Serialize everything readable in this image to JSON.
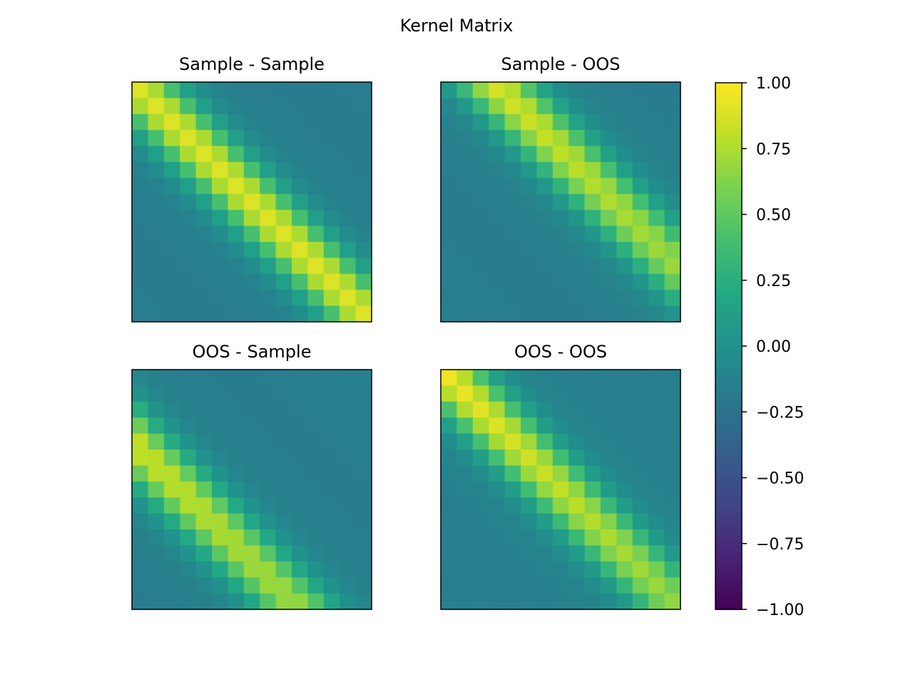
{
  "figure": {
    "title": "Kernel Matrix"
  },
  "chart_data": [
    {
      "type": "heatmap",
      "title": "Sample - Sample",
      "rows": 15,
      "cols": 15,
      "model": {
        "lag": 0,
        "peak": 0.88,
        "peak_start": 0.95,
        "peak_end": 0.95,
        "dip": -0.3
      }
    },
    {
      "type": "heatmap",
      "title": "Sample - OOS",
      "rows": 15,
      "cols": 15,
      "model": {
        "lag": 3.2,
        "peak": 0.75,
        "peak_start": 0.95,
        "peak_end": 0.72,
        "dip": -0.3
      }
    },
    {
      "type": "heatmap",
      "title": "OOS - Sample",
      "rows": 15,
      "cols": 15,
      "model": {
        "lag": -4.5,
        "peak": 0.82,
        "peak_start": 0.92,
        "peak_end": 0.72,
        "dip": -0.3
      }
    },
    {
      "type": "heatmap",
      "title": "OOS - OOS",
      "rows": 15,
      "cols": 15,
      "model": {
        "lag": 0,
        "peak": 0.88,
        "peak_start": 1.0,
        "peak_end": 0.72,
        "dip": -0.25
      }
    }
  ],
  "colorbar": {
    "vmin": -1.0,
    "vmax": 1.0,
    "colormap": "viridis",
    "ticks": [
      1.0,
      0.75,
      0.5,
      0.25,
      0.0,
      -0.25,
      -0.5,
      -0.75,
      -1.0
    ],
    "tick_labels": [
      "1.00",
      "0.75",
      "0.50",
      "0.25",
      "0.00",
      "−0.25",
      "−0.50",
      "−0.75",
      "−1.00"
    ]
  }
}
